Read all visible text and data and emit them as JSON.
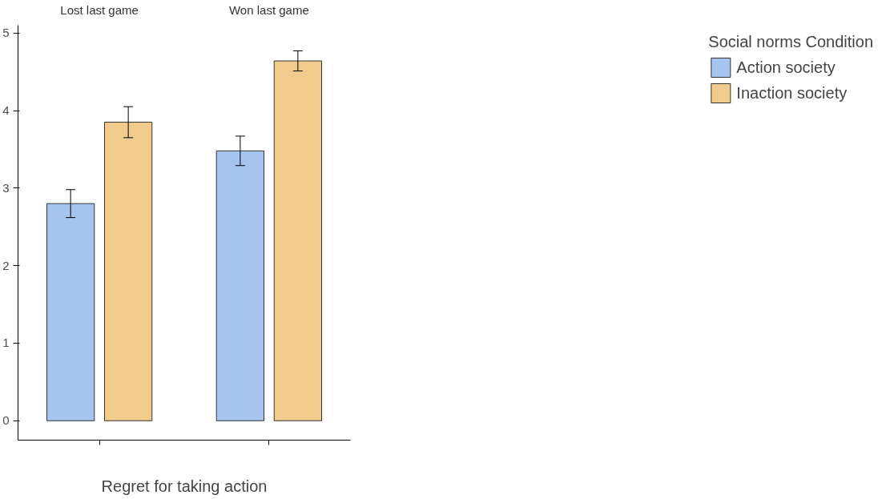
{
  "chart_data": {
    "type": "bar",
    "xlabel": "Regret for taking action",
    "legend_title": "Social norms Condition",
    "categories": [
      "Lost last game",
      "Won last game"
    ],
    "series": [
      {
        "name": "Action society",
        "color": "#a6c4f0",
        "values": [
          2.8,
          3.48
        ],
        "errors": [
          0.18,
          0.19
        ]
      },
      {
        "name": "Inaction society",
        "color": "#f0cb8c",
        "values": [
          3.85,
          4.64
        ],
        "errors": [
          0.2,
          0.13
        ]
      }
    ],
    "ylim": [
      -0.25,
      5.1
    ],
    "yticks": [
      0,
      1,
      2,
      3,
      4,
      5
    ],
    "grid": false,
    "legend": "right"
  }
}
